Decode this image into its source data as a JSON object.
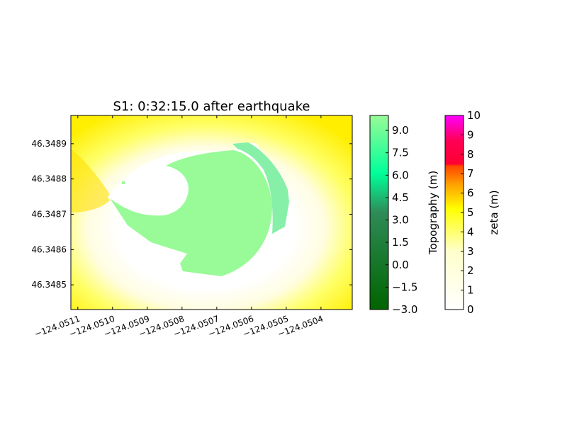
{
  "chart_data": {
    "type": "heatmap",
    "title": "S1: 0:32:15.0 after earthquake",
    "xlabel": "",
    "ylabel": "",
    "xlim": [
      -124.05112,
      -124.05031
    ],
    "ylim": [
      46.34843,
      46.34898
    ],
    "x_ticks": [
      {
        "value": -124.0511,
        "label": "−124.0511"
      },
      {
        "value": -124.051,
        "label": "−124.0510"
      },
      {
        "value": -124.0509,
        "label": "−124.0509"
      },
      {
        "value": -124.0508,
        "label": "−124.0508"
      },
      {
        "value": -124.0507,
        "label": "−124.0507"
      },
      {
        "value": -124.0506,
        "label": "−124.0506"
      },
      {
        "value": -124.0505,
        "label": "−124.0505"
      },
      {
        "value": -124.0504,
        "label": "−124.0504"
      }
    ],
    "y_ticks": [
      {
        "value": 46.3485,
        "label": "46.3485"
      },
      {
        "value": 46.3486,
        "label": "46.3486"
      },
      {
        "value": 46.3487,
        "label": "46.3487"
      },
      {
        "value": 46.3488,
        "label": "46.3488"
      },
      {
        "value": 46.3489,
        "label": "46.3489"
      }
    ],
    "grid": false,
    "colorbars": [
      {
        "label": "Topography (m)",
        "range": [
          -3.0,
          10.0
        ],
        "colors": [
          "#006400",
          "#00ff99",
          "#98fb98"
        ],
        "ticks": [
          {
            "value": -3.0,
            "label": "−3.0"
          },
          {
            "value": -1.5,
            "label": "−1.5"
          },
          {
            "value": 0.0,
            "label": "0.0"
          },
          {
            "value": 1.5,
            "label": "1.5"
          },
          {
            "value": 3.0,
            "label": "3.0"
          },
          {
            "value": 4.5,
            "label": "4.5"
          },
          {
            "value": 6.0,
            "label": "6.0"
          },
          {
            "value": 7.5,
            "label": "7.5"
          },
          {
            "value": 9.0,
            "label": "9.0"
          }
        ]
      },
      {
        "label": "zeta (m)",
        "range": [
          0,
          10
        ],
        "colors": [
          "#ffffff",
          "#ffff00",
          "#ff4500",
          "#ff0000",
          "#ff00ff"
        ],
        "ticks": [
          {
            "value": 0,
            "label": "0"
          },
          {
            "value": 1,
            "label": "1"
          },
          {
            "value": 2,
            "label": "2"
          },
          {
            "value": 3,
            "label": "3"
          },
          {
            "value": 4,
            "label": "4"
          },
          {
            "value": 5,
            "label": "5"
          },
          {
            "value": 6,
            "label": "6"
          },
          {
            "value": 7,
            "label": "7"
          },
          {
            "value": 8,
            "label": "8"
          },
          {
            "value": 9,
            "label": "9"
          },
          {
            "value": 10,
            "label": "10"
          }
        ]
      }
    ],
    "regions": {
      "topography_color": "#98fb98",
      "topography_edge_color": "#86f0a8",
      "dry_color": "#ffffff",
      "water_colors": [
        "#ffffff",
        "#fffde0",
        "#ffff66",
        "#ffee00"
      ]
    }
  }
}
